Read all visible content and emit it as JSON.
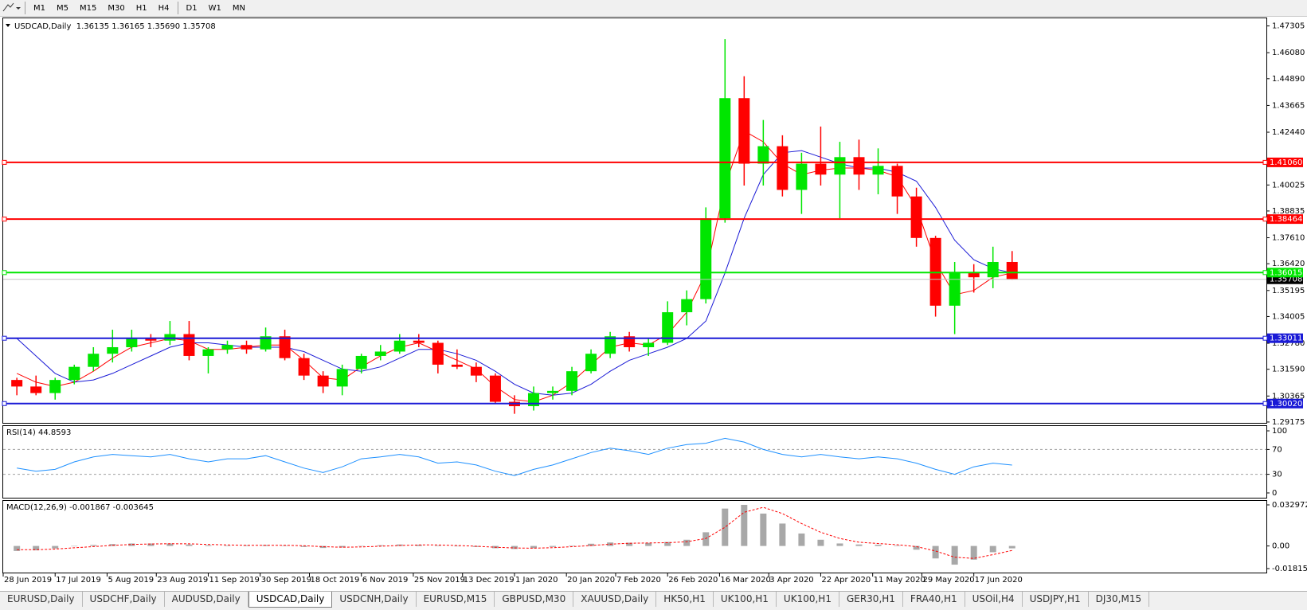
{
  "toolbar": {
    "timeframes": [
      "M1",
      "M5",
      "M15",
      "M30",
      "H1",
      "H4",
      "D1",
      "W1",
      "MN"
    ]
  },
  "chart_data": [
    {
      "type": "candlestick",
      "title": "USDCAD,Daily  1.36135 1.36165 1.35690 1.35708",
      "x": [
        "2019-07-03",
        "2019-07-10",
        "2019-07-17",
        "2019-07-24",
        "2019-07-31",
        "2019-08-07",
        "2019-08-14",
        "2019-08-21",
        "2019-08-28",
        "2019-09-04",
        "2019-09-11",
        "2019-09-18",
        "2019-09-25",
        "2019-10-02",
        "2019-10-09",
        "2019-10-16",
        "2019-10-23",
        "2019-10-30",
        "2019-11-06",
        "2019-11-13",
        "2019-11-20",
        "2019-11-27",
        "2019-12-04",
        "2019-12-11",
        "2019-12-18",
        "2019-12-25",
        "2020-01-01",
        "2020-01-08",
        "2020-01-15",
        "2020-01-22",
        "2020-01-29",
        "2020-02-05",
        "2020-02-12",
        "2020-02-19",
        "2020-02-26",
        "2020-03-04",
        "2020-03-11",
        "2020-03-18",
        "2020-03-25",
        "2020-04-01",
        "2020-04-08",
        "2020-04-15",
        "2020-04-22",
        "2020-04-29",
        "2020-05-06",
        "2020-05-13",
        "2020-05-20",
        "2020-05-27",
        "2020-06-03",
        "2020-06-10",
        "2020-06-17",
        "2020-06-24",
        "2020-07-01"
      ],
      "open": [
        1.311,
        1.308,
        1.305,
        1.311,
        1.317,
        1.323,
        1.326,
        1.33,
        1.329,
        1.332,
        1.322,
        1.325,
        1.327,
        1.325,
        1.331,
        1.321,
        1.313,
        1.308,
        1.316,
        1.322,
        1.324,
        1.329,
        1.328,
        1.318,
        1.317,
        1.313,
        1.301,
        1.299,
        1.305,
        1.306,
        1.315,
        1.323,
        1.331,
        1.326,
        1.328,
        1.342,
        1.348,
        1.385,
        1.44,
        1.41,
        1.418,
        1.398,
        1.41,
        1.405,
        1.413,
        1.405,
        1.409,
        1.395,
        1.376,
        1.345,
        1.36,
        1.358,
        1.365
      ],
      "high": [
        1.312,
        1.313,
        1.312,
        1.318,
        1.326,
        1.334,
        1.334,
        1.332,
        1.338,
        1.338,
        1.326,
        1.329,
        1.329,
        1.335,
        1.334,
        1.323,
        1.315,
        1.318,
        1.323,
        1.327,
        1.332,
        1.332,
        1.329,
        1.325,
        1.319,
        1.314,
        1.304,
        1.308,
        1.308,
        1.317,
        1.325,
        1.333,
        1.333,
        1.33,
        1.347,
        1.352,
        1.39,
        1.467,
        1.45,
        1.43,
        1.423,
        1.415,
        1.427,
        1.42,
        1.421,
        1.417,
        1.41,
        1.399,
        1.377,
        1.365,
        1.364,
        1.372,
        1.37
      ],
      "low": [
        1.304,
        1.304,
        1.302,
        1.309,
        1.315,
        1.319,
        1.324,
        1.326,
        1.327,
        1.32,
        1.314,
        1.323,
        1.323,
        1.324,
        1.32,
        1.311,
        1.305,
        1.304,
        1.314,
        1.32,
        1.323,
        1.326,
        1.314,
        1.316,
        1.31,
        1.3,
        1.2955,
        1.297,
        1.302,
        1.304,
        1.314,
        1.321,
        1.324,
        1.322,
        1.327,
        1.336,
        1.346,
        1.383,
        1.4,
        1.4,
        1.395,
        1.387,
        1.4,
        1.385,
        1.398,
        1.396,
        1.387,
        1.372,
        1.34,
        1.332,
        1.351,
        1.353,
        1.3569
      ],
      "close": [
        1.308,
        1.305,
        1.311,
        1.317,
        1.323,
        1.326,
        1.33,
        1.329,
        1.332,
        1.322,
        1.325,
        1.327,
        1.325,
        1.331,
        1.321,
        1.313,
        1.308,
        1.316,
        1.322,
        1.324,
        1.329,
        1.328,
        1.318,
        1.317,
        1.313,
        1.301,
        1.299,
        1.305,
        1.306,
        1.315,
        1.323,
        1.331,
        1.326,
        1.328,
        1.342,
        1.348,
        1.385,
        1.44,
        1.41,
        1.418,
        1.398,
        1.41,
        1.405,
        1.413,
        1.405,
        1.409,
        1.395,
        1.376,
        1.345,
        1.36,
        1.358,
        1.365,
        1.3571
      ],
      "up_color": "#00e600",
      "down_color": "#ff0000",
      "overlays": [
        {
          "color": "#ff0000",
          "values": [
            1.314,
            1.31,
            1.308,
            1.31,
            1.315,
            1.321,
            1.326,
            1.328,
            1.33,
            1.329,
            1.325,
            1.325,
            1.326,
            1.327,
            1.327,
            1.32,
            1.312,
            1.311,
            1.317,
            1.322,
            1.326,
            1.328,
            1.324,
            1.32,
            1.316,
            1.308,
            1.302,
            1.301,
            1.304,
            1.31,
            1.318,
            1.326,
            1.328,
            1.327,
            1.332,
            1.342,
            1.36,
            1.4,
            1.425,
            1.42,
            1.41,
            1.405,
            1.407,
            1.408,
            1.408,
            1.407,
            1.404,
            1.39,
            1.365,
            1.35,
            1.352,
            1.358,
            1.36
          ]
        },
        {
          "color": "#1a1ad6",
          "values": [
            1.33,
            1.322,
            1.314,
            1.31,
            1.311,
            1.314,
            1.318,
            1.322,
            1.326,
            1.328,
            1.328,
            1.327,
            1.326,
            1.326,
            1.326,
            1.324,
            1.32,
            1.316,
            1.315,
            1.317,
            1.321,
            1.325,
            1.325,
            1.323,
            1.32,
            1.315,
            1.309,
            1.305,
            1.304,
            1.305,
            1.309,
            1.315,
            1.32,
            1.323,
            1.326,
            1.33,
            1.338,
            1.36,
            1.385,
            1.405,
            1.415,
            1.416,
            1.413,
            1.41,
            1.408,
            1.408,
            1.406,
            1.402,
            1.39,
            1.375,
            1.366,
            1.362,
            1.36
          ]
        }
      ],
      "levels": [
        {
          "value": 1.4106,
          "label": "1.41060",
          "color": "#ff0000"
        },
        {
          "value": 1.38464,
          "label": "1.38464",
          "color": "#ff0000"
        },
        {
          "value": 1.36015,
          "label": "1.36015",
          "color": "#00e600"
        },
        {
          "value": 1.33011,
          "label": "1.33011",
          "color": "#1a1ad6"
        },
        {
          "value": 1.3002,
          "label": "1.30020",
          "color": "#1a1ad6"
        }
      ],
      "last": {
        "value": 1.35708,
        "label": "1.35708",
        "color": "#c0c0c0"
      },
      "xlim": [
        "2019-06-28",
        "2020-10-02"
      ],
      "xticks": [
        {
          "value": "2019-06-28",
          "label": "28 Jun 2019"
        },
        {
          "value": "2019-07-17",
          "label": "17 Jul 2019"
        },
        {
          "value": "2019-08-05",
          "label": "5 Aug 2019"
        },
        {
          "value": "2019-08-23",
          "label": "23 Aug 2019"
        },
        {
          "value": "2019-09-11",
          "label": "11 Sep 2019"
        },
        {
          "value": "2019-09-30",
          "label": "30 Sep 2019"
        },
        {
          "value": "2019-10-18",
          "label": "18 Oct 2019"
        },
        {
          "value": "2019-11-06",
          "label": "6 Nov 2019"
        },
        {
          "value": "2019-11-25",
          "label": "25 Nov 2019"
        },
        {
          "value": "2019-12-13",
          "label": "13 Dec 2019"
        },
        {
          "value": "2020-01-01",
          "label": "1 Jan 2020"
        },
        {
          "value": "2020-01-20",
          "label": "20 Jan 2020"
        },
        {
          "value": "2020-02-07",
          "label": "7 Feb 2020"
        },
        {
          "value": "2020-02-26",
          "label": "26 Feb 2020"
        },
        {
          "value": "2020-03-16",
          "label": "16 Mar 2020"
        },
        {
          "value": "2020-04-03",
          "label": "3 Apr 2020"
        },
        {
          "value": "2020-04-22",
          "label": "22 Apr 2020"
        },
        {
          "value": "2020-05-11",
          "label": "11 May 2020"
        },
        {
          "value": "2020-05-29",
          "label": "29 May 2020"
        },
        {
          "value": "2020-06-17",
          "label": "17 Jun 2020"
        }
      ],
      "ylim": [
        1.291,
        1.4769
      ],
      "yticks": [
        1.47305,
        {
          "value": 1.4608,
          "label": "1.46080"
        },
        {
          "value": 1.4489,
          "label": "1.44890"
        },
        1.43665,
        {
          "value": 1.4244,
          "label": "1.42440"
        },
        1.40025,
        1.38835,
        {
          "value": 1.3761,
          "label": "1.37610"
        },
        {
          "value": 1.3642,
          "label": "1.36420"
        },
        1.35195,
        1.34005,
        {
          "value": 1.3278,
          "label": "1.32780"
        },
        {
          "value": 1.3159,
          "label": "1.31590"
        },
        1.30365,
        1.29175
      ]
    },
    {
      "type": "line",
      "title": "RSI(14) 44.8593",
      "color": "#1e90ff",
      "values": [
        40,
        35,
        38,
        50,
        58,
        62,
        60,
        58,
        62,
        55,
        50,
        55,
        55,
        60,
        50,
        40,
        33,
        42,
        55,
        58,
        62,
        58,
        48,
        50,
        45,
        35,
        28,
        38,
        45,
        55,
        65,
        72,
        68,
        62,
        72,
        78,
        80,
        88,
        82,
        70,
        62,
        58,
        62,
        58,
        55,
        58,
        55,
        48,
        38,
        30,
        42,
        48,
        44.86
      ],
      "levels": [
        70,
        30
      ],
      "ylim": [
        -9,
        109
      ],
      "yticks": [
        100,
        70,
        30,
        0
      ]
    },
    {
      "type": "macd",
      "title": "MACD(12,26,9) -0.001867 -0.003645",
      "histogram_color": "#a8a8a8",
      "signal_color": "#ff0000",
      "histogram": [
        -0.004,
        -0.0035,
        -0.002,
        0,
        0.0008,
        0.0015,
        0.002,
        0.002,
        0.002,
        0.0012,
        0.0006,
        0.0004,
        0.0006,
        0.0008,
        0.0002,
        -0.0008,
        -0.0016,
        -0.0012,
        -0.0002,
        0.0006,
        0.0012,
        0.001,
        0.0004,
        0,
        -0.0008,
        -0.0018,
        -0.0024,
        -0.0018,
        -0.0008,
        0.0004,
        0.0018,
        0.0028,
        0.0026,
        0.0024,
        0.0032,
        0.005,
        0.011,
        0.03,
        0.033,
        0.026,
        0.018,
        0.01,
        0.005,
        0.002,
        0.0012,
        0.001,
        0.0004,
        -0.003,
        -0.01,
        -0.015,
        -0.011,
        -0.005,
        -0.0019
      ],
      "signal": [
        -0.003,
        -0.003,
        -0.0025,
        -0.0015,
        -0.0005,
        0.0005,
        0.0012,
        0.0016,
        0.0018,
        0.0017,
        0.0012,
        0.0008,
        0.0005,
        0.0006,
        0.0006,
        0.0002,
        -0.0006,
        -0.001,
        -0.0008,
        -0.0002,
        0.0004,
        0.0008,
        0.0008,
        0.0004,
        -0.0002,
        -0.001,
        -0.0016,
        -0.0018,
        -0.0014,
        -0.0006,
        0.0004,
        0.0014,
        0.0022,
        0.0024,
        0.0026,
        0.0034,
        0.006,
        0.015,
        0.027,
        0.031,
        0.026,
        0.018,
        0.011,
        0.006,
        0.003,
        0.002,
        0.001,
        -0.0005,
        -0.004,
        -0.009,
        -0.01,
        -0.007,
        -0.0036
      ],
      "ylim": [
        -0.02199,
        0.03681
      ],
      "yticks": [
        0.032972,
        {
          "value": 0,
          "label": "0.00"
        },
        -0.018154
      ]
    }
  ],
  "tabs": {
    "items": [
      "EURUSD,Daily",
      "USDCHF,Daily",
      "AUDUSD,Daily",
      "USDCAD,Daily",
      "USDCNH,Daily",
      "EURUSD,M15",
      "GBPUSD,M30",
      "XAUUSD,Daily",
      "HK50,H1",
      "UK100,H1",
      "UK100,H1",
      "GER30,H1",
      "FRA40,H1",
      "USOil,H4",
      "USDJPY,H1",
      "DJ30,M15"
    ],
    "active": 3
  }
}
